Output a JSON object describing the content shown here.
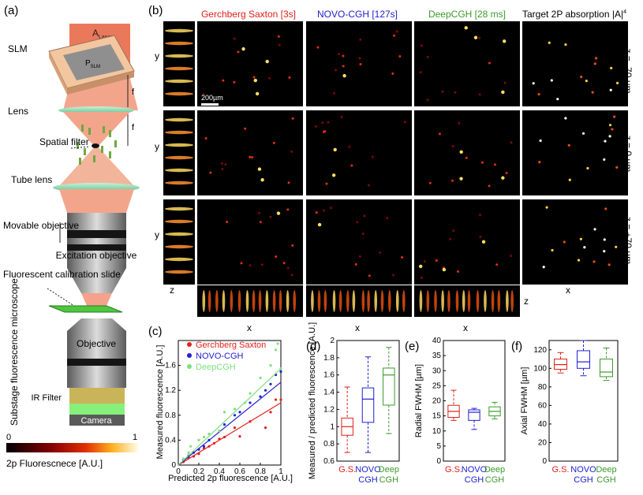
{
  "panel_labels": {
    "a": "(a)",
    "b": "(b)",
    "c": "(c)",
    "d": "(d)",
    "e": "(e)",
    "f": "(f)"
  },
  "schematic": {
    "laser": "A",
    "laser_sub": "Laser",
    "slm": "SLM",
    "p_slm": "P",
    "p_slm_sub": "SLM",
    "focal": "f",
    "lens": "Lens",
    "spatial_filter": "Spatial filter",
    "tube_lens": "Tube lens",
    "movable_objective": "Movable objective",
    "excitation_objective": "Excitation objective",
    "calibration_slide": "Fluorescent calibration slide",
    "substage": "Substage fluorescence microscope",
    "objective": "Objective",
    "ir_filter": "IR Filter",
    "camera": "Camera",
    "colorbar_min": "0",
    "colorbar_max": "1",
    "colorbar_label": "2p Fluorescnece [A.U.]"
  },
  "grid": {
    "columns": [
      {
        "label": "Gerchberg Saxton [3s]",
        "color": "#e0201b"
      },
      {
        "label": "NOVO-CGH [127s]",
        "color": "#2020d0"
      },
      {
        "label": "DeepCGH [28 ms]",
        "color": "#3a9a2a"
      },
      {
        "label": "Target 2P absorption |A|",
        "color": "#000000"
      }
    ],
    "target_exp": "4",
    "rows": [
      "z = -70 µm",
      "z = 0 µm",
      "z = +70 µm"
    ],
    "ylabel": "y",
    "zlabel": "z",
    "xlabel": "x",
    "scalebar": "200µm"
  },
  "chart_data": [
    {
      "type": "scatter",
      "panel": "c",
      "xlabel": "Predicted 2p fluorescence  [A.U.]",
      "ylabel": "Measured fluorescence [A.U.]",
      "xlim": [
        0,
        1
      ],
      "ylim": [
        0,
        2
      ],
      "xticks": [
        "0",
        "0.2",
        "0.4",
        "0.6",
        "0.8",
        "1"
      ],
      "yticks": [
        "0",
        "0.4",
        "0.8",
        "1.2",
        "1.6"
      ],
      "series": [
        {
          "name": "Gerchberg Saxton",
          "color": "#e0201b",
          "slope": 1.0,
          "x": [
            0.05,
            0.1,
            0.15,
            0.2,
            0.25,
            0.3,
            0.35,
            0.4,
            0.45,
            0.55,
            0.6,
            0.7,
            0.85,
            0.9,
            0.95,
            1.0
          ],
          "y": [
            0.05,
            0.12,
            0.14,
            0.18,
            0.27,
            0.3,
            0.35,
            0.42,
            0.45,
            0.6,
            0.46,
            0.7,
            0.6,
            0.85,
            1.05,
            1.05
          ]
        },
        {
          "name": "NOVO-CGH",
          "color": "#2020d0",
          "slope": 1.33,
          "x": [
            0.05,
            0.1,
            0.15,
            0.2,
            0.25,
            0.3,
            0.4,
            0.45,
            0.55,
            0.6,
            0.7,
            0.8,
            0.85,
            0.9,
            0.95,
            1.0
          ],
          "y": [
            0.08,
            0.15,
            0.2,
            0.25,
            0.3,
            0.4,
            0.55,
            0.65,
            0.8,
            0.85,
            1.0,
            1.1,
            1.2,
            1.3,
            1.45,
            1.5
          ]
        },
        {
          "name": "DeepCGH",
          "color": "#7fe07f",
          "slope": 1.55,
          "x": [
            0.05,
            0.1,
            0.12,
            0.2,
            0.25,
            0.3,
            0.4,
            0.45,
            0.55,
            0.65,
            0.7,
            0.8,
            0.9,
            0.95,
            0.97,
            1.0
          ],
          "y": [
            0.1,
            0.2,
            0.3,
            0.4,
            0.45,
            0.5,
            0.55,
            0.85,
            0.9,
            1.0,
            1.15,
            1.4,
            1.6,
            1.85,
            1.95,
            1.55
          ]
        }
      ]
    },
    {
      "type": "box",
      "panel": "d",
      "ylabel": "Measured / predicted fluorescence [A.U.]",
      "ylim": [
        0.6,
        2.0
      ],
      "yticks": [
        "0.6",
        "0.8",
        "1",
        "1.2",
        "1.4",
        "1.6",
        "1.8",
        "2"
      ],
      "categories": [
        "G.S.",
        "NOVO CGH",
        "Deep CGH"
      ],
      "colors": [
        "#e0201b",
        "#2020d0",
        "#3a9a2a"
      ],
      "boxes": [
        {
          "min": 0.7,
          "q1": 0.9,
          "median": 1.0,
          "q3": 1.1,
          "max": 1.46
        },
        {
          "min": 0.7,
          "q1": 1.05,
          "median": 1.32,
          "q3": 1.45,
          "max": 1.81
        },
        {
          "min": 0.92,
          "q1": 1.25,
          "median": 1.6,
          "q3": 1.68,
          "max": 1.92
        }
      ]
    },
    {
      "type": "box",
      "panel": "e",
      "ylabel": "Radial FWHM [µm]",
      "ylim": [
        0,
        40
      ],
      "yticks": [
        "0",
        "5",
        "10",
        "15",
        "20",
        "25",
        "30",
        "35",
        "40"
      ],
      "categories": [
        "G.S.",
        "NOVO CGH",
        "Deep CGH"
      ],
      "colors": [
        "#e0201b",
        "#2020d0",
        "#3a9a2a"
      ],
      "boxes": [
        {
          "min": 13.5,
          "q1": 14.5,
          "median": 16.5,
          "q3": 18.5,
          "max": 23.5
        },
        {
          "min": 10.5,
          "q1": 13.5,
          "median": 16.2,
          "q3": 17.0,
          "max": 17.5
        },
        {
          "min": 14.0,
          "q1": 15.0,
          "median": 16.5,
          "q3": 18.0,
          "max": 19.5
        }
      ]
    },
    {
      "type": "box",
      "panel": "f",
      "ylabel": "Axial FWHM [µm]",
      "ylim": [
        0,
        130
      ],
      "yticks": [
        "0",
        "20",
        "40",
        "60",
        "80",
        "100",
        "120"
      ],
      "categories": [
        "G.S.",
        "NOVO CGH",
        "Deep CGH"
      ],
      "colors": [
        "#e0201b",
        "#2020d0",
        "#3a9a2a"
      ],
      "boxes": [
        {
          "min": 95,
          "q1": 99,
          "median": 104,
          "q3": 110,
          "max": 117
        },
        {
          "min": 92,
          "q1": 100,
          "median": 107,
          "q3": 119,
          "max": 130
        },
        {
          "min": 87,
          "q1": 91,
          "median": 96,
          "q3": 110,
          "max": 122
        }
      ]
    }
  ]
}
